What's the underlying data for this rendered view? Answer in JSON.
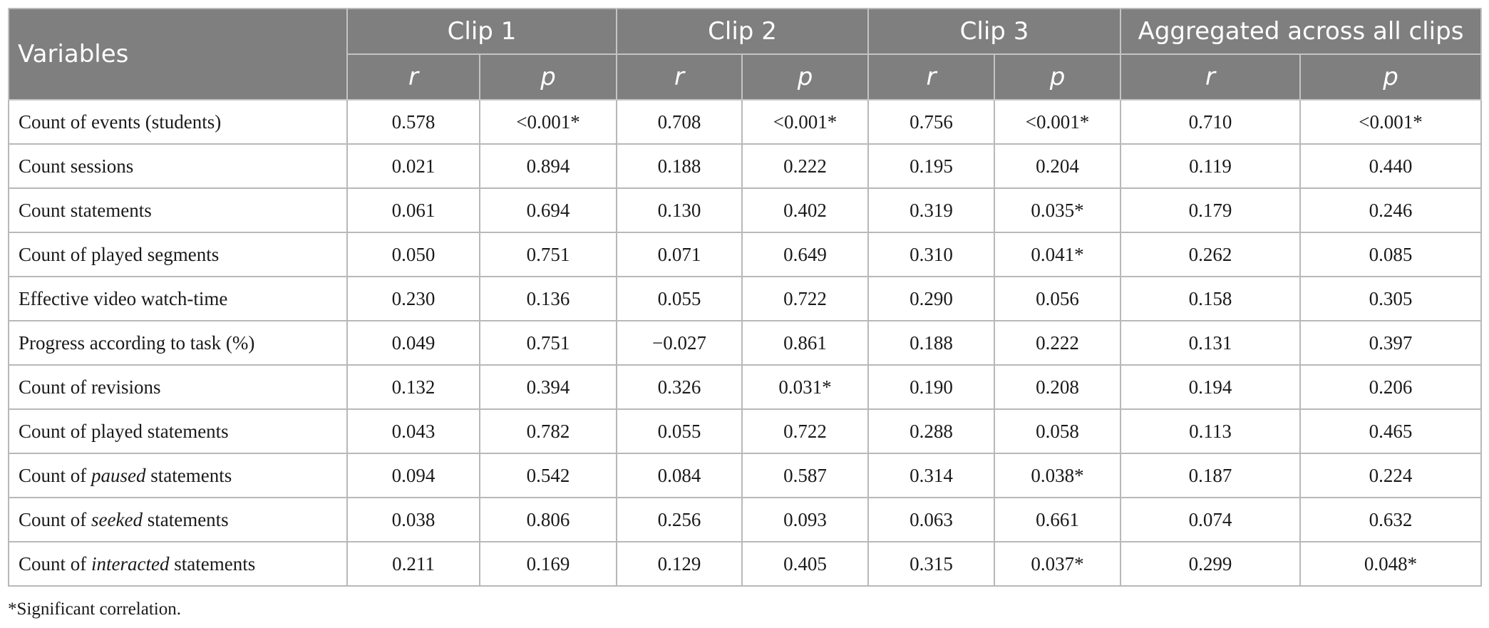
{
  "headers": {
    "variables": "Variables",
    "groups": [
      "Clip 1",
      "Clip 2",
      "Clip 3",
      "Aggregated across all clips"
    ],
    "r": "r",
    "p": "p"
  },
  "rows": [
    {
      "pre": "Count of events (students)",
      "em": "",
      "post": "",
      "vals": [
        "0.578",
        "<0.001*",
        "0.708",
        "<0.001*",
        "0.756",
        "<0.001*",
        "0.710",
        "<0.001*"
      ]
    },
    {
      "pre": "Count sessions",
      "em": "",
      "post": "",
      "vals": [
        "0.021",
        "0.894",
        "0.188",
        "0.222",
        "0.195",
        "0.204",
        "0.119",
        "0.440"
      ]
    },
    {
      "pre": "Count statements",
      "em": "",
      "post": "",
      "vals": [
        "0.061",
        "0.694",
        "0.130",
        "0.402",
        "0.319",
        "0.035*",
        "0.179",
        "0.246"
      ]
    },
    {
      "pre": "Count of played segments",
      "em": "",
      "post": "",
      "vals": [
        "0.050",
        "0.751",
        "0.071",
        "0.649",
        "0.310",
        "0.041*",
        "0.262",
        "0.085"
      ]
    },
    {
      "pre": "Effective video watch-time",
      "em": "",
      "post": "",
      "vals": [
        "0.230",
        "0.136",
        "0.055",
        "0.722",
        "0.290",
        "0.056",
        "0.158",
        "0.305"
      ]
    },
    {
      "pre": "Progress according to task (%)",
      "em": "",
      "post": "",
      "vals": [
        "0.049",
        "0.751",
        "−0.027",
        "0.861",
        "0.188",
        "0.222",
        "0.131",
        "0.397"
      ]
    },
    {
      "pre": "Count of revisions",
      "em": "",
      "post": "",
      "vals": [
        "0.132",
        "0.394",
        "0.326",
        "0.031*",
        "0.190",
        "0.208",
        "0.194",
        "0.206"
      ]
    },
    {
      "pre": "Count of played statements",
      "em": "",
      "post": "",
      "vals": [
        "0.043",
        "0.782",
        "0.055",
        "0.722",
        "0.288",
        "0.058",
        "0.113",
        "0.465"
      ]
    },
    {
      "pre": "Count of ",
      "em": "paused",
      "post": " statements",
      "vals": [
        "0.094",
        "0.542",
        "0.084",
        "0.587",
        "0.314",
        "0.038*",
        "0.187",
        "0.224"
      ]
    },
    {
      "pre": "Count of ",
      "em": "seeked",
      "post": " statements",
      "vals": [
        "0.038",
        "0.806",
        "0.256",
        "0.093",
        "0.063",
        "0.661",
        "0.074",
        "0.632"
      ]
    },
    {
      "pre": "Count of ",
      "em": "interacted",
      "post": " statements",
      "vals": [
        "0.211",
        "0.169",
        "0.129",
        "0.405",
        "0.315",
        "0.037*",
        "0.299",
        "0.048*"
      ]
    }
  ],
  "footnote": "*Significant correlation."
}
